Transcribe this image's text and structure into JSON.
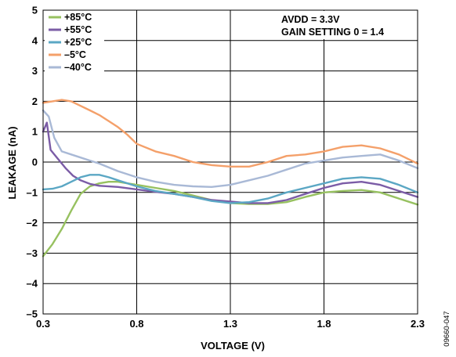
{
  "chart_data": {
    "type": "line",
    "title": "",
    "xlabel": "VOLTAGE (V)",
    "ylabel": "LEAKAGE (nA)",
    "xlim": [
      0.3,
      2.3
    ],
    "ylim": [
      -5,
      5
    ],
    "xticks": [
      0.3,
      0.8,
      1.3,
      1.8,
      2.3
    ],
    "xtick_labels": [
      "0.3",
      "0.8",
      "1.3",
      "1.8",
      "2.3"
    ],
    "yticks": [
      5,
      4,
      3,
      2,
      1,
      0,
      -1,
      -2,
      -3,
      -4,
      -5
    ],
    "ytick_labels": [
      "5",
      "4",
      "3",
      "2",
      "1",
      "0",
      "–1",
      "–2",
      "–3",
      "–4",
      "–5"
    ],
    "grid": true,
    "legend_position": "top-left",
    "annotations": [
      "AVDD = 3.3V",
      "GAIN SETTING 0 = 1.4"
    ],
    "figure_code": "09660-047",
    "series": [
      {
        "name": "+85°C",
        "color": "#97c160",
        "x": [
          0.3,
          0.35,
          0.4,
          0.45,
          0.5,
          0.55,
          0.6,
          0.65,
          0.7,
          0.75,
          0.8,
          0.9,
          1.0,
          1.1,
          1.2,
          1.3,
          1.4,
          1.5,
          1.6,
          1.7,
          1.8,
          1.9,
          2.0,
          2.1,
          2.2,
          2.3
        ],
        "y": [
          -3.1,
          -2.7,
          -2.2,
          -1.6,
          -1.05,
          -0.8,
          -0.7,
          -0.65,
          -0.65,
          -0.7,
          -0.75,
          -0.85,
          -0.95,
          -1.1,
          -1.25,
          -1.35,
          -1.38,
          -1.38,
          -1.32,
          -1.15,
          -1.0,
          -0.95,
          -0.92,
          -1.0,
          -1.2,
          -1.4
        ]
      },
      {
        "name": "+55°C",
        "color": "#7b5ca6",
        "x": [
          0.3,
          0.32,
          0.34,
          0.38,
          0.42,
          0.46,
          0.5,
          0.55,
          0.6,
          0.7,
          0.8,
          0.9,
          1.0,
          1.1,
          1.2,
          1.3,
          1.4,
          1.5,
          1.6,
          1.7,
          1.8,
          1.9,
          2.0,
          2.1,
          2.2,
          2.3
        ],
        "y": [
          1.0,
          1.3,
          0.4,
          0.1,
          -0.2,
          -0.45,
          -0.6,
          -0.72,
          -0.78,
          -0.82,
          -0.9,
          -0.98,
          -1.05,
          -1.15,
          -1.25,
          -1.3,
          -1.35,
          -1.35,
          -1.25,
          -1.05,
          -0.85,
          -0.7,
          -0.65,
          -0.75,
          -0.95,
          -1.15
        ]
      },
      {
        "name": "+25°C",
        "color": "#5ba7c4",
        "x": [
          0.3,
          0.35,
          0.4,
          0.45,
          0.5,
          0.55,
          0.6,
          0.65,
          0.7,
          0.8,
          0.9,
          1.0,
          1.1,
          1.2,
          1.3,
          1.4,
          1.5,
          1.6,
          1.7,
          1.8,
          1.9,
          2.0,
          2.1,
          2.2,
          2.3
        ],
        "y": [
          -0.9,
          -0.88,
          -0.8,
          -0.65,
          -0.5,
          -0.42,
          -0.42,
          -0.5,
          -0.6,
          -0.8,
          -0.95,
          -1.05,
          -1.15,
          -1.28,
          -1.35,
          -1.32,
          -1.2,
          -1.0,
          -0.85,
          -0.7,
          -0.55,
          -0.5,
          -0.55,
          -0.75,
          -1.0
        ]
      },
      {
        "name": "–5°C",
        "color": "#f4a06a",
        "x": [
          0.3,
          0.35,
          0.4,
          0.45,
          0.5,
          0.55,
          0.6,
          0.65,
          0.7,
          0.75,
          0.8,
          0.9,
          1.0,
          1.1,
          1.2,
          1.3,
          1.4,
          1.5,
          1.6,
          1.7,
          1.8,
          1.9,
          2.0,
          2.1,
          2.2,
          2.3
        ],
        "y": [
          1.95,
          2.0,
          2.05,
          2.0,
          1.85,
          1.7,
          1.55,
          1.35,
          1.15,
          0.9,
          0.6,
          0.35,
          0.2,
          0.0,
          -0.1,
          -0.15,
          -0.15,
          0.0,
          0.2,
          0.25,
          0.35,
          0.5,
          0.55,
          0.45,
          0.25,
          -0.05
        ]
      },
      {
        "name": "–40°C",
        "color": "#a9b9d6",
        "x": [
          0.3,
          0.33,
          0.36,
          0.4,
          0.45,
          0.5,
          0.55,
          0.6,
          0.7,
          0.8,
          0.9,
          1.0,
          1.1,
          1.2,
          1.3,
          1.4,
          1.5,
          1.6,
          1.7,
          1.8,
          1.9,
          2.0,
          2.1,
          2.2,
          2.3
        ],
        "y": [
          1.7,
          1.5,
          0.8,
          0.35,
          0.25,
          0.15,
          0.05,
          -0.05,
          -0.3,
          -0.5,
          -0.65,
          -0.75,
          -0.8,
          -0.82,
          -0.75,
          -0.6,
          -0.45,
          -0.25,
          -0.05,
          0.05,
          0.15,
          0.2,
          0.25,
          0.05,
          -0.2
        ]
      }
    ]
  }
}
